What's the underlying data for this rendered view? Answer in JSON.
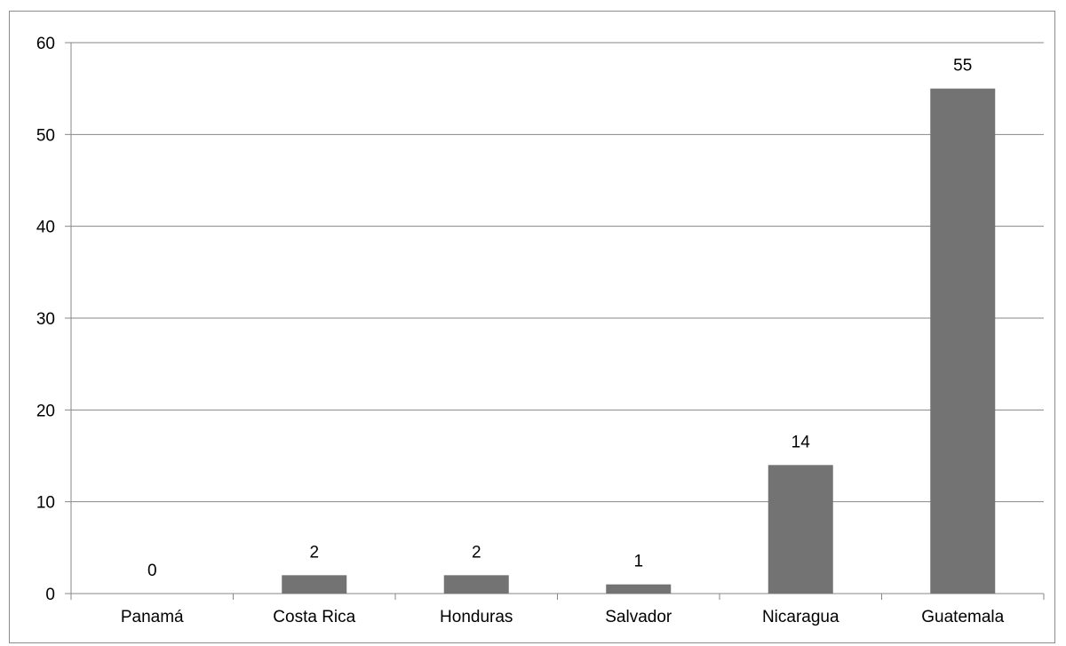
{
  "chart_data": {
    "type": "bar",
    "categories": [
      "Panamá",
      "Costa Rica",
      "Honduras",
      "Salvador",
      "Nicaragua",
      "Guatemala"
    ],
    "values": [
      0,
      2,
      2,
      1,
      14,
      55
    ],
    "data_labels": [
      "0",
      "2",
      "2",
      "1",
      "14",
      "55"
    ],
    "y_ticks": [
      "0",
      "10",
      "20",
      "30",
      "40",
      "50",
      "60"
    ],
    "ylim": [
      0,
      60
    ],
    "grid": true,
    "legend": false,
    "bar_color": "#737373",
    "grid_color": "#878787"
  }
}
